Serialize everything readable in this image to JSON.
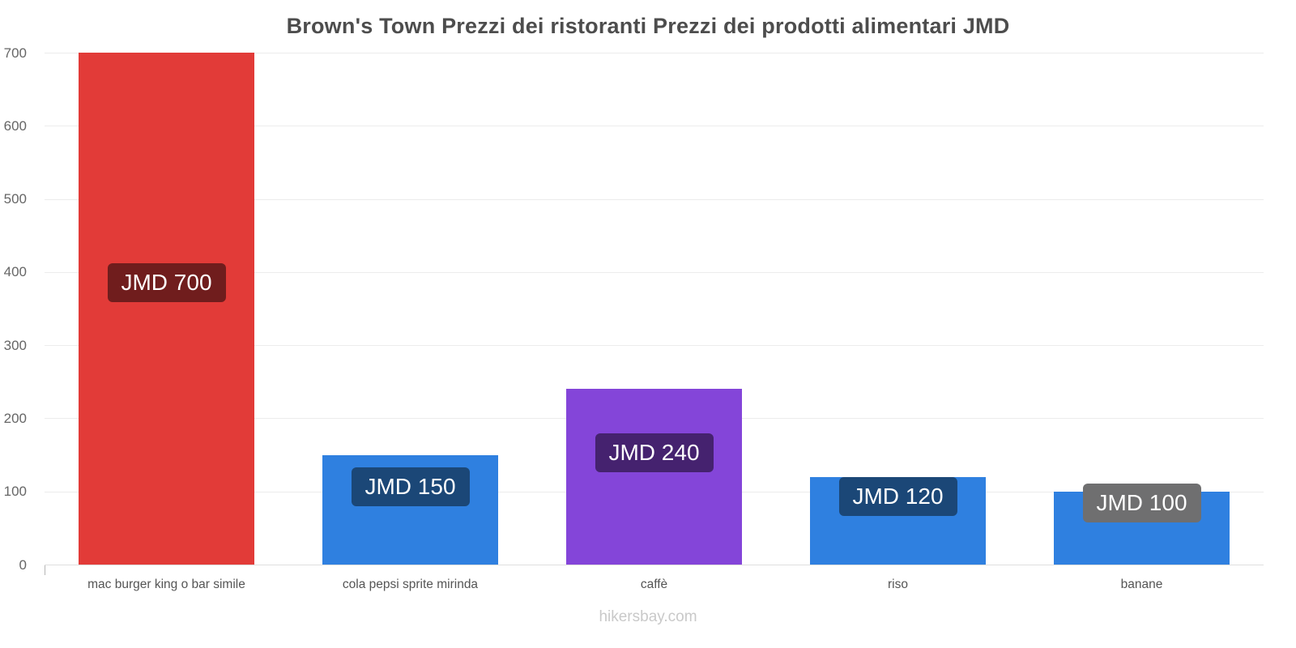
{
  "chart_data": {
    "type": "bar",
    "title": "Brown's Town Prezzi dei ristoranti Prezzi dei prodotti alimentari JMD",
    "currency": "JMD",
    "categories": [
      "mac burger king o bar simile",
      "cola pepsi sprite mirinda",
      "caffè",
      "riso",
      "banane"
    ],
    "values": [
      700,
      150,
      240,
      120,
      100
    ],
    "points": [
      {
        "category": "mac burger king o bar simile",
        "value": 700,
        "label": "JMD 700",
        "bar_color": "#e23b38",
        "label_bg": "#701d1d",
        "label_center_value": 385
      },
      {
        "category": "cola pepsi sprite mirinda",
        "value": 150,
        "label": "JMD 150",
        "bar_color": "#2f80e0",
        "label_bg": "#1b4777",
        "label_center_value": 106
      },
      {
        "category": "caffè",
        "value": 240,
        "label": "JMD 240",
        "bar_color": "#8445d9",
        "label_bg": "#45226f",
        "label_center_value": 153
      },
      {
        "category": "riso",
        "value": 120,
        "label": "JMD 120",
        "bar_color": "#2f80e0",
        "label_bg": "#1b4777",
        "label_center_value": 93
      },
      {
        "category": "banane",
        "value": 100,
        "label": "JMD 100",
        "bar_color": "#2f80e0",
        "label_bg": "#6f6f70",
        "label_center_value": 84
      }
    ],
    "ylim": [
      0,
      700
    ],
    "yticks": [
      0,
      100,
      200,
      300,
      400,
      500,
      600,
      700
    ],
    "grid": true,
    "legend": false,
    "xlabel": "",
    "ylabel": ""
  },
  "footer": {
    "text": "hikersbay.com"
  }
}
